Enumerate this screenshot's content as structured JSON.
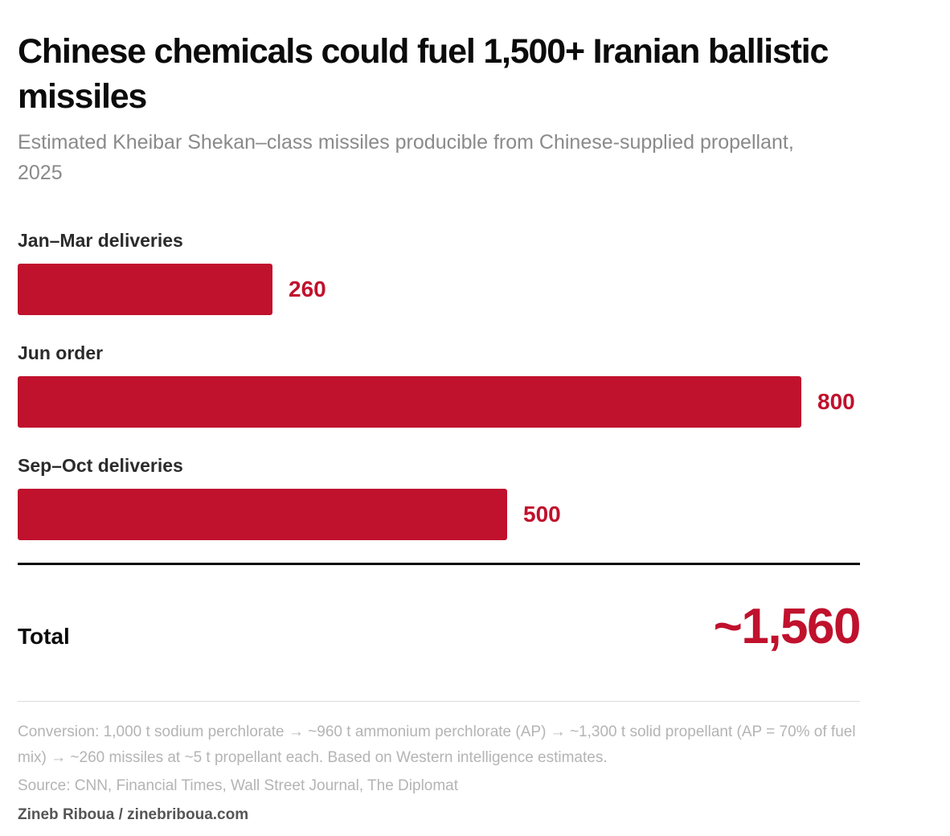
{
  "header": {
    "title": "Chinese chemicals could fuel 1,500+ Iranian ballistic missiles",
    "subtitle": "Estimated Kheibar Shekan–class missiles producible from Chinese-supplied propellant, 2025"
  },
  "chart_data": {
    "type": "bar",
    "orientation": "horizontal",
    "title": "Chinese chemicals could fuel 1,500+ Iranian ballistic missiles",
    "subtitle": "Estimated Kheibar Shekan–class missiles producible from Chinese-supplied propellant, 2025",
    "categories": [
      "Jan–Mar deliveries",
      "Jun order",
      "Sep–Oct deliveries"
    ],
    "values": [
      260,
      800,
      500
    ],
    "value_labels": [
      "260",
      "800",
      "500"
    ],
    "xlim": [
      0,
      860
    ],
    "grid": false,
    "legend": "none",
    "bar_color": "#c0112d"
  },
  "total": {
    "label": "Total",
    "value_text": "~1,560",
    "color": "#c0112d"
  },
  "footer": {
    "note": "Conversion: 1,000 t sodium perchlorate → ~960 t ammonium perchlorate (AP) → ~1,300 t solid propellant (AP = 70% of fuel mix) → ~260 missiles at ~5 t propellant each. Based on Western intelligence estimates.",
    "source": "Source: CNN, Financial Times, Wall Street Journal, The Diplomat",
    "credit": "Zineb Riboua / zinebriboua.com"
  }
}
